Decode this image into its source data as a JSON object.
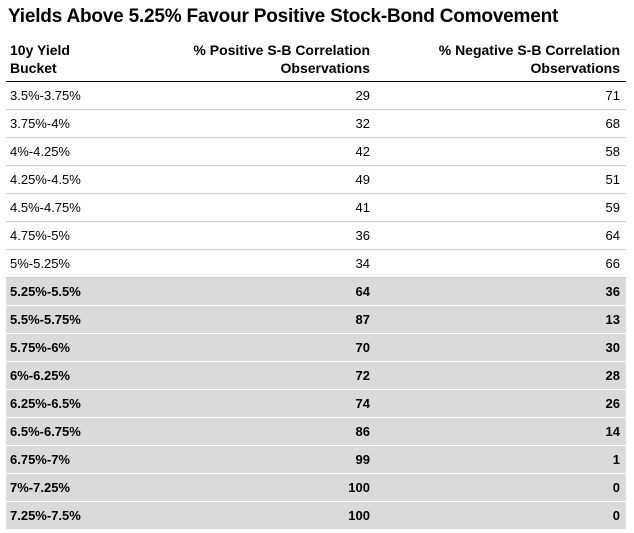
{
  "chart_data": {
    "type": "table",
    "title": "Yields Above 5.25% Favour Positive Stock-Bond Comovement",
    "columns": [
      "10y Yield Bucket",
      "% Positive S-B Correlation Observations",
      "% Negative S-B Correlation Observations"
    ],
    "rows": [
      {
        "bucket": "3.5%-3.75%",
        "positive": 29,
        "negative": 71,
        "highlighted": false
      },
      {
        "bucket": "3.75%-4%",
        "positive": 32,
        "negative": 68,
        "highlighted": false
      },
      {
        "bucket": "4%-4.25%",
        "positive": 42,
        "negative": 58,
        "highlighted": false
      },
      {
        "bucket": "4.25%-4.5%",
        "positive": 49,
        "negative": 51,
        "highlighted": false
      },
      {
        "bucket": "4.5%-4.75%",
        "positive": 41,
        "negative": 59,
        "highlighted": false
      },
      {
        "bucket": "4.75%-5%",
        "positive": 36,
        "negative": 64,
        "highlighted": false
      },
      {
        "bucket": "5%-5.25%",
        "positive": 34,
        "negative": 66,
        "highlighted": false
      },
      {
        "bucket": "5.25%-5.5%",
        "positive": 64,
        "negative": 36,
        "highlighted": true
      },
      {
        "bucket": "5.5%-5.75%",
        "positive": 87,
        "negative": 13,
        "highlighted": true
      },
      {
        "bucket": "5.75%-6%",
        "positive": 70,
        "negative": 30,
        "highlighted": true
      },
      {
        "bucket": "6%-6.25%",
        "positive": 72,
        "negative": 28,
        "highlighted": true
      },
      {
        "bucket": "6.25%-6.5%",
        "positive": 74,
        "negative": 26,
        "highlighted": true
      },
      {
        "bucket": "6.5%-6.75%",
        "positive": 86,
        "negative": 14,
        "highlighted": true
      },
      {
        "bucket": "6.75%-7%",
        "positive": 99,
        "negative": 1,
        "highlighted": true
      },
      {
        "bucket": "7%-7.25%",
        "positive": 100,
        "negative": 0,
        "highlighted": true
      },
      {
        "bucket": "7.25%-7.5%",
        "positive": 100,
        "negative": 0,
        "highlighted": true
      }
    ],
    "highlight_color": "#dadada"
  }
}
